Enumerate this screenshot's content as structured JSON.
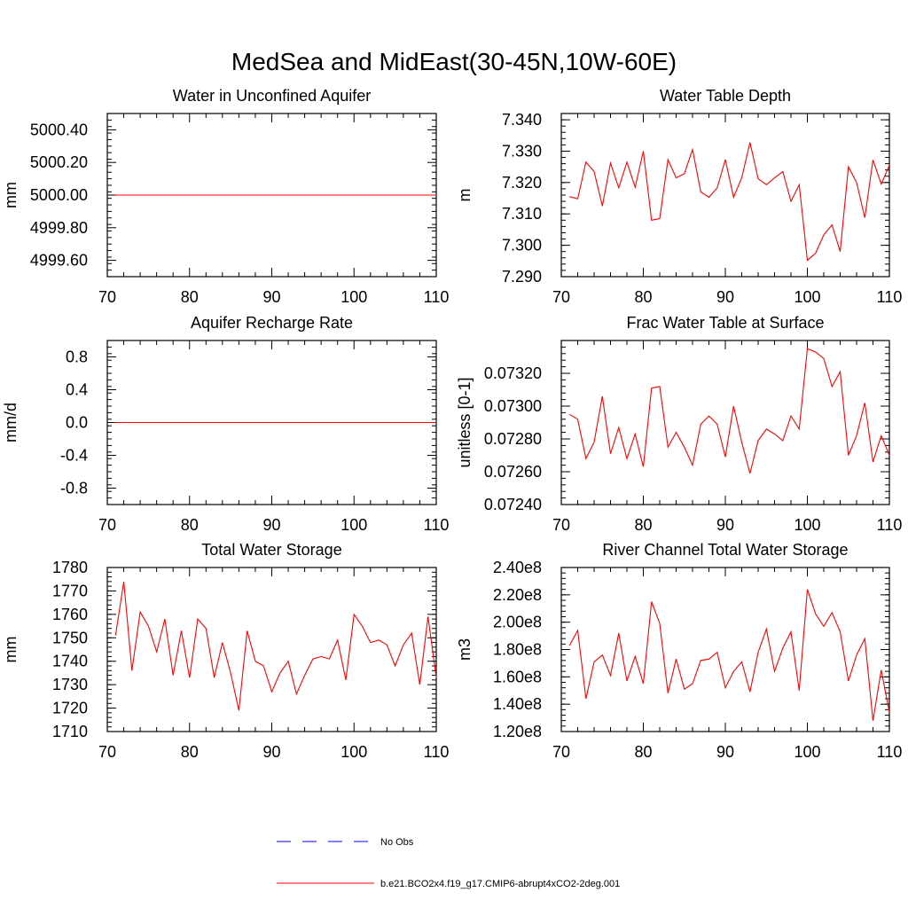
{
  "figure_title": "MedSea and MidEast(30-45N,10W-60E)",
  "colors": {
    "series": "#ff0000",
    "obs": "#0000ff",
    "axis": "#000000"
  },
  "legend": {
    "obs_label": "No Obs",
    "model_label": "b.e21.BCO2x4.f19_g17.CMIP6-abrupt4xCO2-2deg.001"
  },
  "chart_data": [
    {
      "type": "line",
      "title": "Water in Unconfined Aquifer",
      "ylabel": "mm",
      "xlim": [
        70,
        110
      ],
      "ylim": [
        4999.5,
        5000.5
      ],
      "x_ticks": [
        70,
        80,
        90,
        100,
        110
      ],
      "x_tick_labels": [
        "70",
        "80",
        "90",
        "100",
        "110"
      ],
      "y_ticks": [
        4999.6,
        4999.8,
        5000.0,
        5000.2,
        5000.4
      ],
      "y_tick_labels": [
        "4999.60",
        "4999.80",
        "5000.00",
        "5000.20",
        "5000.40"
      ],
      "y_minor_step": 0.04,
      "x_start": 71,
      "values": [
        5000,
        5000,
        5000,
        5000,
        5000,
        5000,
        5000,
        5000,
        5000,
        5000,
        5000,
        5000,
        5000,
        5000,
        5000,
        5000,
        5000,
        5000,
        5000,
        5000,
        5000,
        5000,
        5000,
        5000,
        5000,
        5000,
        5000,
        5000,
        5000,
        5000,
        5000,
        5000,
        5000,
        5000,
        5000,
        5000,
        5000,
        5000,
        5000,
        5000
      ]
    },
    {
      "type": "line",
      "title": "Water Table Depth",
      "ylabel": "m",
      "xlim": [
        70,
        110
      ],
      "ylim": [
        7.29,
        7.342
      ],
      "x_ticks": [
        70,
        80,
        90,
        100,
        110
      ],
      "x_tick_labels": [
        "70",
        "80",
        "90",
        "100",
        "110"
      ],
      "y_ticks": [
        7.29,
        7.3,
        7.31,
        7.32,
        7.33,
        7.34
      ],
      "y_tick_labels": [
        "7.290",
        "7.300",
        "7.310",
        "7.320",
        "7.330",
        "7.340"
      ],
      "y_minor_step": 0.002,
      "x_start": 71,
      "values": [
        7.3155,
        7.3148,
        7.3265,
        7.3235,
        7.3125,
        7.3262,
        7.3183,
        7.3265,
        7.3185,
        7.33,
        7.308,
        7.3085,
        7.3273,
        7.3215,
        7.3228,
        7.3305,
        7.317,
        7.3153,
        7.3183,
        7.3273,
        7.3153,
        7.3215,
        7.3328,
        7.3212,
        7.3193,
        7.3215,
        7.3235,
        7.314,
        7.3193,
        7.2952,
        7.2975,
        7.3033,
        7.3065,
        7.298,
        7.325,
        7.32,
        7.3088,
        7.3272,
        7.3195,
        7.3255
      ]
    },
    {
      "type": "line",
      "title": "Aquifer Recharge Rate",
      "ylabel": "mm/d",
      "xlim": [
        70,
        110
      ],
      "ylim": [
        -1.0,
        1.0
      ],
      "x_ticks": [
        70,
        80,
        90,
        100,
        110
      ],
      "x_tick_labels": [
        "70",
        "80",
        "90",
        "100",
        "110"
      ],
      "y_ticks": [
        -0.8,
        -0.4,
        0.0,
        0.4,
        0.8
      ],
      "y_tick_labels": [
        "-0.8",
        "-0.4",
        "0.0",
        "0.4",
        "0.8"
      ],
      "y_minor_step": 0.08,
      "x_start": 71,
      "values": [
        0,
        0,
        0,
        0,
        0,
        0,
        0,
        0,
        0,
        0,
        0,
        0,
        0,
        0,
        0,
        0,
        0,
        0,
        0,
        0,
        0,
        0,
        0,
        0,
        0,
        0,
        0,
        0,
        0,
        0,
        0,
        0,
        0,
        0,
        0,
        0,
        0,
        0,
        0,
        0
      ]
    },
    {
      "type": "line",
      "title": "Frac Water Table at Surface",
      "ylabel": "unitless [0-1]",
      "xlim": [
        70,
        110
      ],
      "ylim": [
        0.0724,
        0.0734
      ],
      "x_ticks": [
        70,
        80,
        90,
        100,
        110
      ],
      "x_tick_labels": [
        "70",
        "80",
        "90",
        "100",
        "110"
      ],
      "y_ticks": [
        0.0724,
        0.0726,
        0.0728,
        0.073,
        0.0732
      ],
      "y_tick_labels": [
        "0.07240",
        "0.07260",
        "0.07280",
        "0.07300",
        "0.07320"
      ],
      "y_minor_step": 4e-05,
      "x_start": 71,
      "values": [
        0.07295,
        0.07292,
        0.07268,
        0.07278,
        0.07306,
        0.07271,
        0.07287,
        0.07268,
        0.07283,
        0.07263,
        0.07311,
        0.07312,
        0.07275,
        0.07284,
        0.07275,
        0.07264,
        0.07289,
        0.07294,
        0.07289,
        0.07269,
        0.073,
        0.07278,
        0.07259,
        0.07279,
        0.07286,
        0.07283,
        0.07279,
        0.07294,
        0.07286,
        0.07335,
        0.07333,
        0.07329,
        0.07312,
        0.07321,
        0.0727,
        0.07282,
        0.07302,
        0.07266,
        0.07282,
        0.0727
      ]
    },
    {
      "type": "line",
      "title": "Total Water Storage",
      "ylabel": "mm",
      "xlim": [
        70,
        110
      ],
      "ylim": [
        1710,
        1780
      ],
      "x_ticks": [
        70,
        80,
        90,
        100,
        110
      ],
      "x_tick_labels": [
        "70",
        "80",
        "90",
        "100",
        "110"
      ],
      "y_ticks": [
        1710,
        1720,
        1730,
        1740,
        1750,
        1760,
        1770,
        1780
      ],
      "y_tick_labels": [
        "1710",
        "1720",
        "1730",
        "1740",
        "1750",
        "1760",
        "1770",
        "1780"
      ],
      "y_minor_step": 2,
      "x_start": 71,
      "values": [
        1751,
        1774,
        1736,
        1761,
        1755,
        1744,
        1758,
        1734,
        1753,
        1733,
        1758,
        1754,
        1733,
        1748,
        1735,
        1719,
        1753,
        1740,
        1738,
        1727,
        1735,
        1740,
        1726,
        1734,
        1741,
        1742,
        1741,
        1749,
        1732,
        1760,
        1755,
        1748,
        1749,
        1747,
        1738,
        1747,
        1752,
        1730,
        1759,
        1733
      ]
    },
    {
      "type": "line",
      "title": "River Channel Total Water Storage",
      "ylabel": "m3",
      "xlim": [
        70,
        110
      ],
      "ylim": [
        120000000,
        240000000
      ],
      "x_ticks": [
        70,
        80,
        90,
        100,
        110
      ],
      "x_tick_labels": [
        "70",
        "80",
        "90",
        "100",
        "110"
      ],
      "y_ticks": [
        120000000,
        140000000,
        160000000,
        180000000,
        200000000,
        220000000,
        240000000
      ],
      "y_tick_labels": [
        "1.20e8",
        "1.40e8",
        "1.60e8",
        "1.80e8",
        "2.00e8",
        "2.20e8",
        "2.40e8"
      ],
      "y_minor_step": 4000000,
      "x_start": 71,
      "values": [
        183000000,
        194000000,
        144000000,
        171000000,
        176000000,
        161000000,
        192000000,
        157000000,
        175000000,
        155000000,
        215000000,
        199000000,
        148000000,
        173000000,
        151000000,
        155000000,
        172000000,
        173000000,
        178000000,
        152000000,
        164000000,
        171000000,
        149000000,
        178000000,
        195000000,
        164000000,
        181000000,
        193000000,
        150000000,
        224000000,
        206000000,
        197000000,
        207000000,
        193000000,
        157000000,
        176000000,
        188000000,
        128000000,
        165000000,
        134000000
      ]
    }
  ]
}
